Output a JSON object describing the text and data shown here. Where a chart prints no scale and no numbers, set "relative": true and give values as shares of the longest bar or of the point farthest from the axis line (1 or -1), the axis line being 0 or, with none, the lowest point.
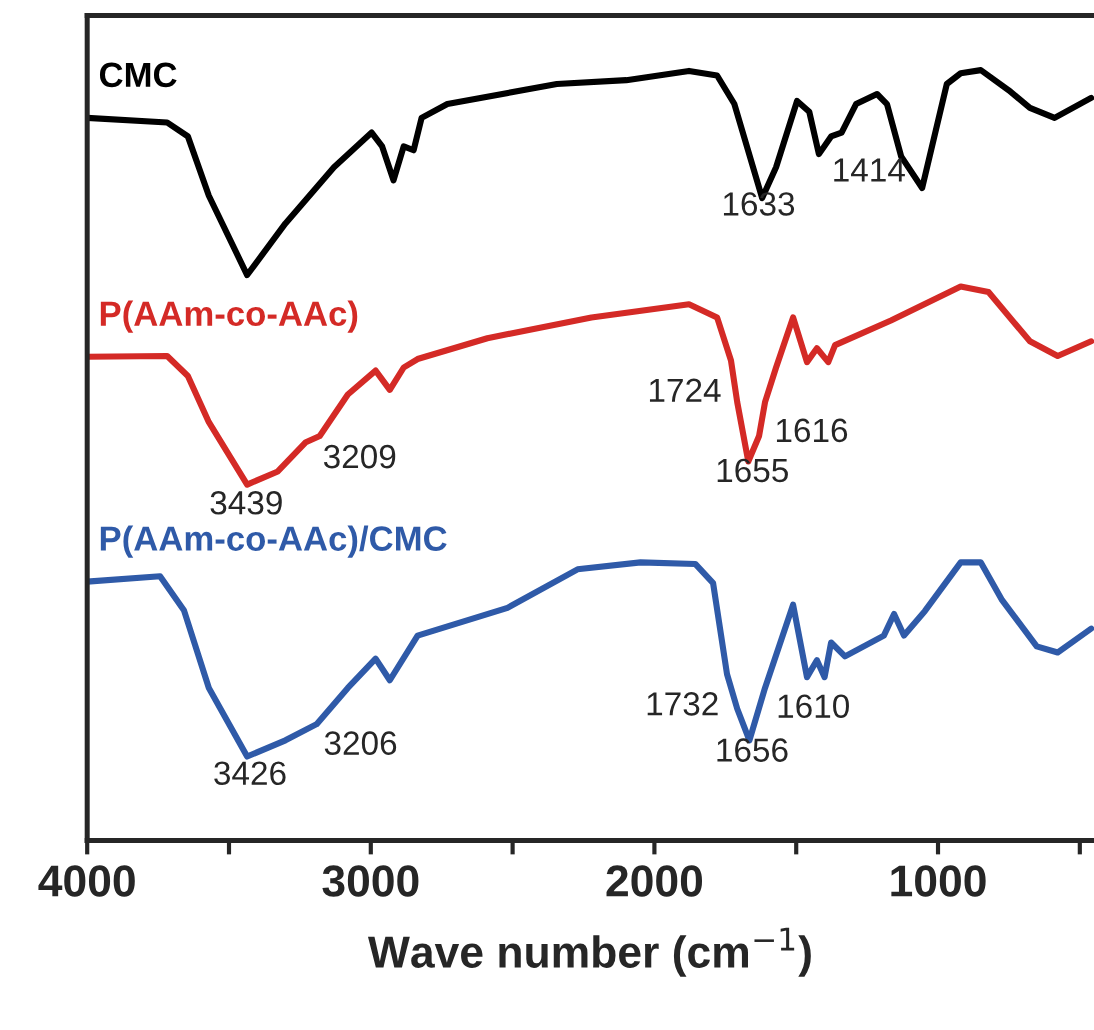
{
  "chart_data": {
    "type": "line",
    "relative": true,
    "xlabel": "Wave number (cm$^{−1}$)",
    "xlim": [
      4000,
      450
    ],
    "xticks": [
      4000,
      {
        "value": 3500,
        "label": null
      },
      3000,
      {
        "value": 2500,
        "label": null
      },
      2000,
      {
        "value": 1500,
        "label": null
      },
      1000,
      {
        "value": 500,
        "label": null
      }
    ],
    "tick_labels": "x",
    "grid": false,
    "line_style": "solid",
    "marker": "none",
    "series": [
      {
        "name": "CMC",
        "color": "#000000",
        "x": [
          4000,
          3718,
          3645,
          3571,
          3436,
          3301,
          3130,
          2997,
          2960,
          2920,
          2884,
          2849,
          2821,
          2730,
          2344,
          2099,
          1878,
          1779,
          1718,
          1620,
          1571,
          1497,
          1454,
          1420,
          1377,
          1340,
          1289,
          1215,
          1180,
          1130,
          1056,
          969,
          920,
          849,
          751,
          676,
          589,
          460
        ],
        "values": [
          0.938,
          0.932,
          0.914,
          0.837,
          0.734,
          0.801,
          0.874,
          0.919,
          0.901,
          0.857,
          0.901,
          0.896,
          0.938,
          0.956,
          0.982,
          0.987,
          0.999,
          0.993,
          0.956,
          0.834,
          0.874,
          0.96,
          0.946,
          0.891,
          0.914,
          0.919,
          0.956,
          0.969,
          0.956,
          0.888,
          0.847,
          0.982,
          0.996,
          1.0,
          0.974,
          0.951,
          0.938,
          0.964
        ]
      },
      {
        "name": "P(AAm-co-AAc)",
        "color": "#d42a26",
        "x": [
          4000,
          3718,
          3645,
          3571,
          3436,
          3328,
          3229,
          3180,
          3081,
          2983,
          2933,
          2884,
          2835,
          2589,
          2222,
          1878,
          1779,
          1730,
          1708,
          1669,
          1631,
          1610,
          1571,
          1511,
          1462,
          1427,
          1387,
          1363,
          1166,
          920,
          822,
          676,
          578,
          460
        ],
        "values": [
          0.628,
          0.629,
          0.603,
          0.543,
          0.462,
          0.479,
          0.517,
          0.525,
          0.579,
          0.61,
          0.585,
          0.614,
          0.625,
          0.652,
          0.679,
          0.696,
          0.679,
          0.623,
          0.569,
          0.492,
          0.525,
          0.569,
          0.614,
          0.679,
          0.621,
          0.639,
          0.621,
          0.643,
          0.675,
          0.719,
          0.712,
          0.648,
          0.629,
          0.648
        ]
      },
      {
        "name": "P(AAm-co-AAc)/CMC",
        "color": "#2f5aa8",
        "x": [
          4000,
          3743,
          3659,
          3571,
          3436,
          3301,
          3191,
          3081,
          2983,
          2933,
          2835,
          2518,
          2271,
          2049,
          1856,
          1793,
          1744,
          1708,
          1665,
          1610,
          1511,
          1462,
          1427,
          1400,
          1377,
          1328,
          1191,
          1155,
          1120,
          1046,
          920,
          849,
          774,
          652,
          578,
          460
        ],
        "values": [
          0.336,
          0.343,
          0.299,
          0.198,
          0.109,
          0.13,
          0.151,
          0.198,
          0.236,
          0.208,
          0.266,
          0.302,
          0.352,
          0.361,
          0.359,
          0.334,
          0.216,
          0.171,
          0.13,
          0.198,
          0.306,
          0.212,
          0.234,
          0.212,
          0.257,
          0.239,
          0.266,
          0.294,
          0.266,
          0.298,
          0.361,
          0.361,
          0.312,
          0.252,
          0.244,
          0.275
        ]
      }
    ],
    "annotations": [
      {
        "text": "1633",
        "x": 1633,
        "y": 0.85
      },
      {
        "text": "1414",
        "x": 1414,
        "y": 0.894
      },
      {
        "text": "3439",
        "x": 3439,
        "y": 0.462
      },
      {
        "text": "3209",
        "x": 3209,
        "y": 0.522
      },
      {
        "text": "1724",
        "x": 1724,
        "y": 0.608
      },
      {
        "text": "1616",
        "x": 1616,
        "y": 0.556
      },
      {
        "text": "1655",
        "x": 1655,
        "y": 0.504
      },
      {
        "text": "3426",
        "x": 3426,
        "y": 0.111
      },
      {
        "text": "3206",
        "x": 3206,
        "y": 0.15
      },
      {
        "text": "1732",
        "x": 1732,
        "y": 0.201
      },
      {
        "text": "1610",
        "x": 1610,
        "y": 0.198
      },
      {
        "text": "1656",
        "x": 1656,
        "y": 0.141
      }
    ]
  }
}
